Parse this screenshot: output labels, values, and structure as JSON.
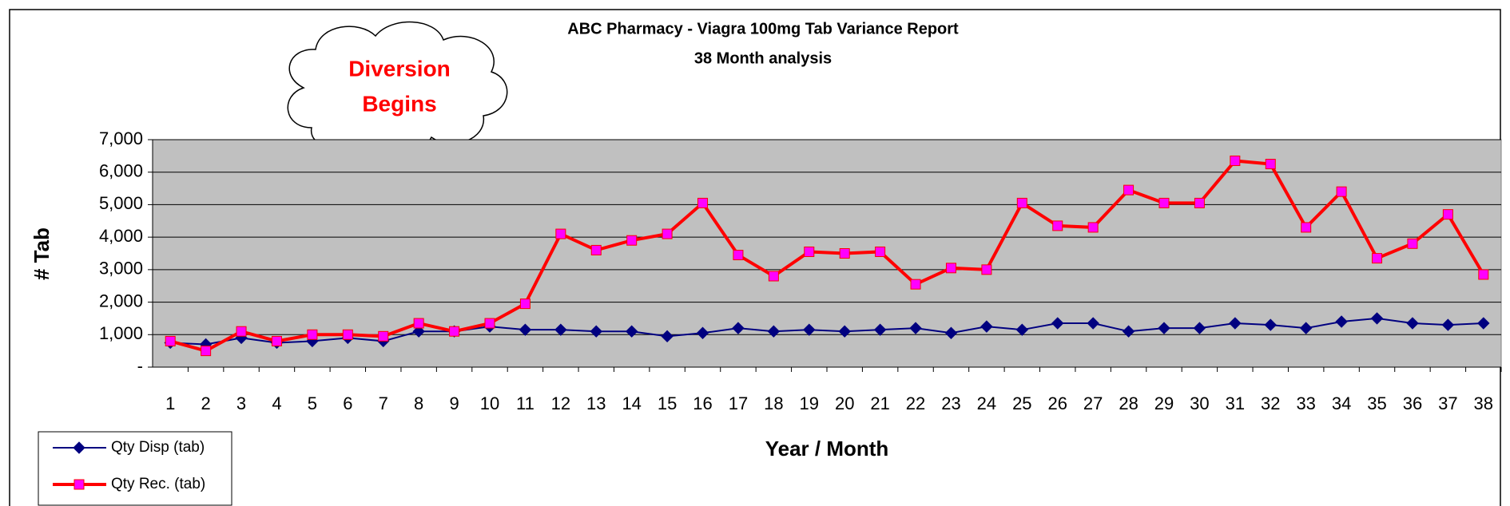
{
  "chart_data": {
    "type": "line",
    "title": "ABC Pharmacy - Viagra 100mg Tab Variance Report",
    "subtitle": "38 Month analysis",
    "x_label": "Year / Month",
    "y_label": "# Tab",
    "annotation": [
      "Diversion",
      "Begins"
    ],
    "categories": [
      1,
      2,
      3,
      4,
      5,
      6,
      7,
      8,
      9,
      10,
      11,
      12,
      13,
      14,
      15,
      16,
      17,
      18,
      19,
      20,
      21,
      22,
      23,
      24,
      25,
      26,
      27,
      28,
      29,
      30,
      31,
      32,
      33,
      34,
      35,
      36,
      37,
      38
    ],
    "series": [
      {
        "name": "Qty Disp (tab)",
        "color": "#000080",
        "marker": "diamond",
        "marker_color": "#000080",
        "values": [
          750,
          700,
          900,
          750,
          800,
          900,
          800,
          1100,
          1100,
          1250,
          1150,
          1150,
          1100,
          1100,
          950,
          1050,
          1200,
          1100,
          1150,
          1100,
          1150,
          1200,
          1050,
          1250,
          1150,
          1350,
          1350,
          1100,
          1200,
          1200,
          1350,
          1300,
          1200,
          1400,
          1500,
          1350,
          1300,
          1350
        ]
      },
      {
        "name": "Qty Rec. (tab)",
        "color": "#ff0000",
        "marker": "square",
        "marker_color": "#ff00ff",
        "values": [
          800,
          500,
          1100,
          800,
          1000,
          1000,
          950,
          1350,
          1100,
          1350,
          1950,
          4100,
          3600,
          3900,
          4100,
          5050,
          3450,
          2800,
          3550,
          3500,
          3550,
          2550,
          3050,
          3000,
          5050,
          4350,
          4300,
          5450,
          5050,
          5050,
          6350,
          6250,
          4300,
          5400,
          3350,
          3800,
          4700,
          2850
        ]
      }
    ],
    "ylim": [
      0,
      7000
    ],
    "yticks": [
      {
        "value": 0,
        "label": "-"
      },
      {
        "value": 1000,
        "label": "1,000"
      },
      {
        "value": 2000,
        "label": "2,000"
      },
      {
        "value": 3000,
        "label": "3,000"
      },
      {
        "value": 4000,
        "label": "4,000"
      },
      {
        "value": 5000,
        "label": "5,000"
      },
      {
        "value": 6000,
        "label": "6,000"
      },
      {
        "value": 7000,
        "label": "7,000"
      }
    ],
    "grid": true,
    "plot_background": "#c0c0c0",
    "legend_position": "bottom-left"
  }
}
